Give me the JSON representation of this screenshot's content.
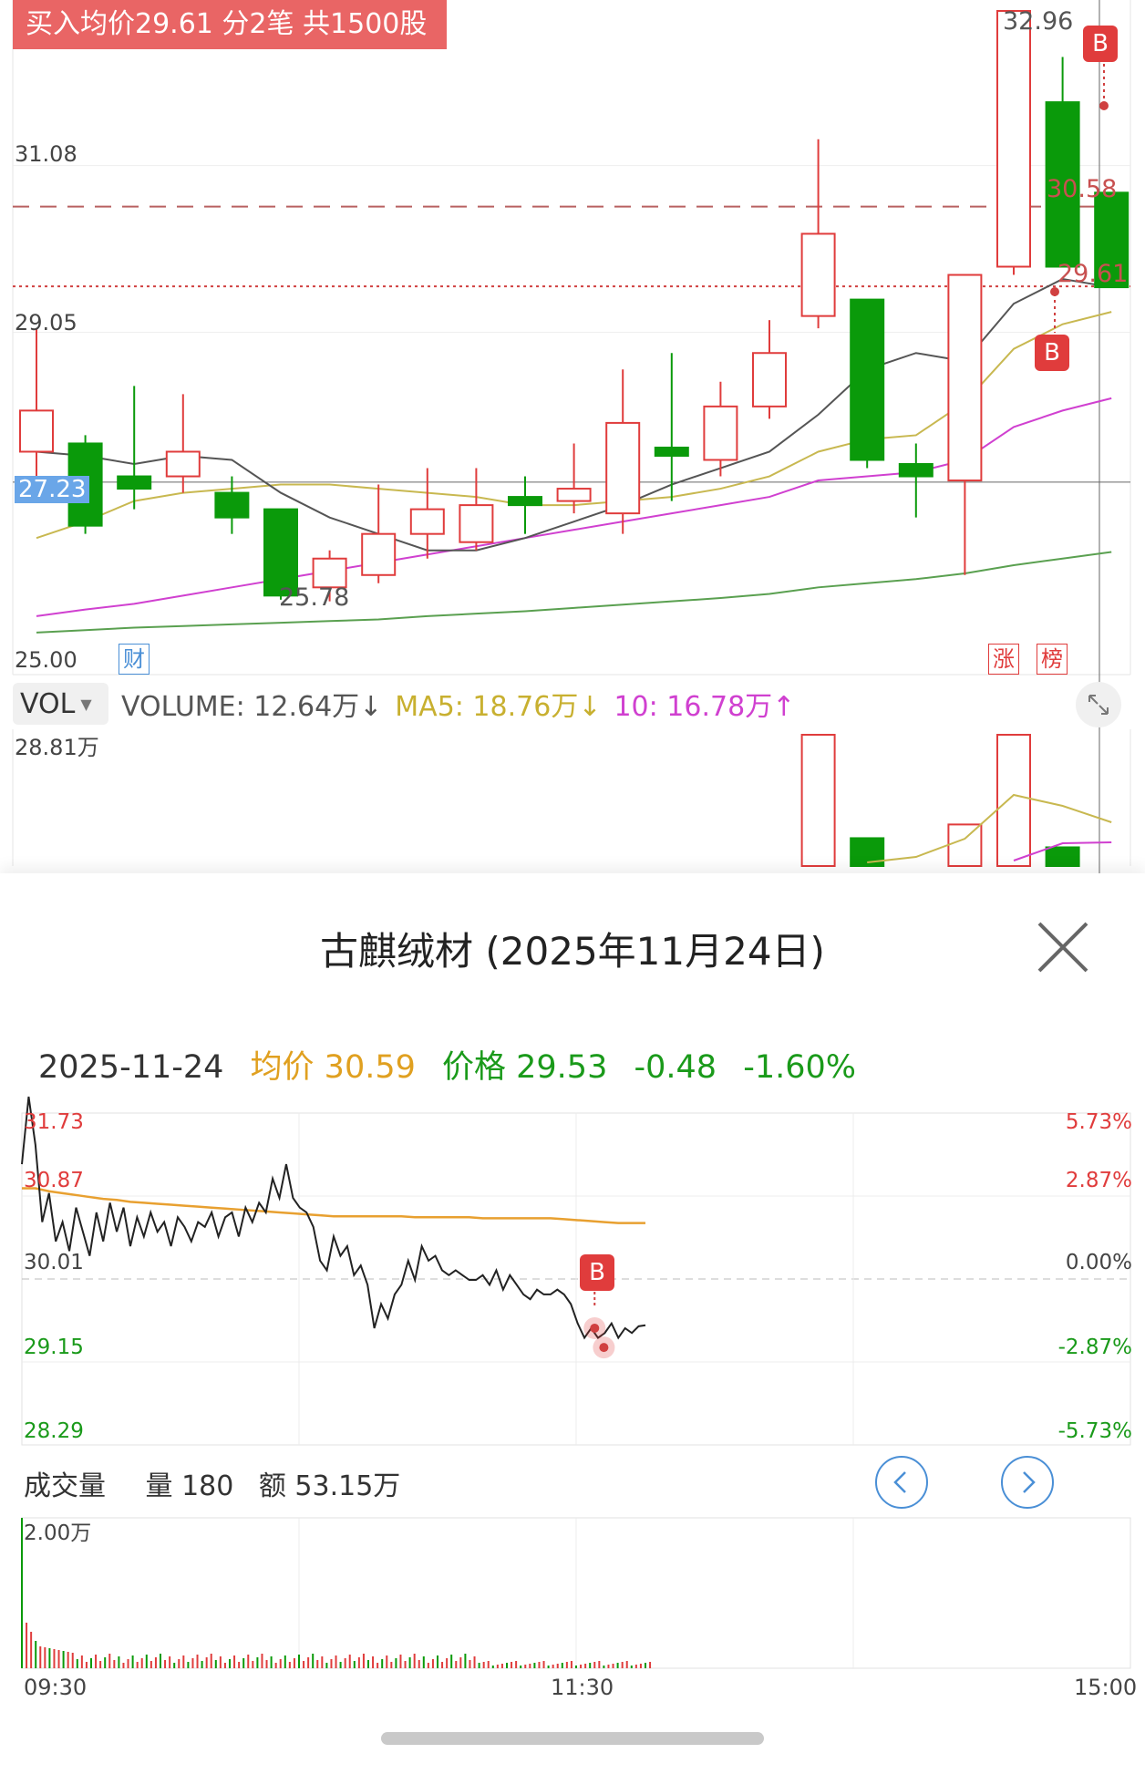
{
  "colors": {
    "up": "#e03c3c",
    "down": "#0a9a0a",
    "ma5": "#555555",
    "ma10": "#c8b850",
    "ma20": "#d040d0",
    "ma60": "#5aa050",
    "avg": "#e8a030",
    "accent": "#4a8fd6"
  },
  "kline": {
    "buy_banner": "买入均价29.61 分2笔 共1500股",
    "y_labels": [
      "31.08",
      "29.05",
      "25.00"
    ],
    "current_price_tag": "27.23",
    "high_label": "32.96",
    "low_label": "25.78",
    "avg_cost_label": "30.58",
    "buy_price_label": "29.61",
    "buy_marker": "B",
    "finance_tag": "财",
    "tags": [
      "涨",
      "榜"
    ],
    "ylim": [
      25.0,
      32.96
    ],
    "candles": [
      {
        "o": 27.6,
        "c": 28.1,
        "h": 29.1,
        "l": 27.2
      },
      {
        "o": 27.7,
        "c": 26.7,
        "h": 27.8,
        "l": 26.6
      },
      {
        "o": 27.3,
        "c": 27.15,
        "h": 28.4,
        "l": 26.9
      },
      {
        "o": 27.3,
        "c": 27.6,
        "h": 28.3,
        "l": 27.1
      },
      {
        "o": 27.1,
        "c": 26.8,
        "h": 27.3,
        "l": 26.6
      },
      {
        "o": 26.9,
        "c": 25.85,
        "h": 26.9,
        "l": 25.8
      },
      {
        "o": 25.95,
        "c": 26.3,
        "h": 26.4,
        "l": 25.78
      },
      {
        "o": 26.1,
        "c": 26.6,
        "h": 27.2,
        "l": 26.0
      },
      {
        "o": 26.6,
        "c": 26.9,
        "h": 27.4,
        "l": 26.3
      },
      {
        "o": 26.5,
        "c": 26.95,
        "h": 27.4,
        "l": 26.4
      },
      {
        "o": 27.05,
        "c": 26.95,
        "h": 27.3,
        "l": 26.6
      },
      {
        "o": 27.0,
        "c": 27.15,
        "h": 27.7,
        "l": 26.85
      },
      {
        "o": 26.85,
        "c": 27.95,
        "h": 28.6,
        "l": 26.6
      },
      {
        "o": 27.65,
        "c": 27.55,
        "h": 28.8,
        "l": 27.0
      },
      {
        "o": 27.5,
        "c": 28.15,
        "h": 28.45,
        "l": 27.3
      },
      {
        "o": 28.15,
        "c": 28.8,
        "h": 29.2,
        "l": 28.0
      },
      {
        "o": 29.25,
        "c": 30.25,
        "h": 31.4,
        "l": 29.1
      },
      {
        "o": 29.45,
        "c": 27.5,
        "h": 29.45,
        "l": 27.4
      },
      {
        "o": 27.45,
        "c": 27.3,
        "h": 27.7,
        "l": 26.8
      },
      {
        "o": 27.25,
        "c": 29.75,
        "h": 29.75,
        "l": 26.1
      },
      {
        "o": 29.85,
        "c": 32.96,
        "h": 32.96,
        "l": 29.75
      },
      {
        "o": 31.85,
        "c": 29.85,
        "h": 32.4,
        "l": 29.85
      },
      {
        "o": 30.75,
        "c": 29.6,
        "h": 30.75,
        "l": 29.6
      }
    ],
    "ma5": [
      27.6,
      27.55,
      27.45,
      27.55,
      27.5,
      27.1,
      26.8,
      26.6,
      26.4,
      26.4,
      26.55,
      26.75,
      26.95,
      27.2,
      27.4,
      27.6,
      28.05,
      28.6,
      28.8,
      28.7,
      29.4,
      29.7,
      29.6
    ],
    "ma10": [
      26.55,
      26.75,
      27.0,
      27.1,
      27.15,
      27.2,
      27.2,
      27.15,
      27.1,
      27.05,
      26.95,
      26.95,
      27.0,
      27.05,
      27.15,
      27.3,
      27.6,
      27.75,
      27.8,
      28.2,
      28.85,
      29.15,
      29.3
    ],
    "ma20": [
      25.6,
      25.68,
      25.75,
      25.85,
      25.95,
      26.05,
      26.15,
      26.25,
      26.35,
      26.45,
      26.55,
      26.65,
      26.75,
      26.85,
      26.95,
      27.05,
      27.25,
      27.3,
      27.35,
      27.5,
      27.9,
      28.1,
      28.25
    ],
    "ma60": [
      25.4,
      25.43,
      25.46,
      25.48,
      25.5,
      25.52,
      25.54,
      25.56,
      25.6,
      25.63,
      25.66,
      25.7,
      25.74,
      25.78,
      25.82,
      25.87,
      25.95,
      26.0,
      26.05,
      26.12,
      26.22,
      26.3,
      26.38
    ]
  },
  "vol_bar": {
    "selector": "VOL",
    "volume": "VOLUME: 12.64万↓",
    "ma5": "MA5: 18.76万↓",
    "ma10": "10: 16.78万↑",
    "max_label": "28.81万",
    "visible_bars": [
      {
        "i": 16,
        "v": 28.81,
        "up": true
      },
      {
        "i": 17,
        "v": 17.5,
        "up": false
      },
      {
        "i": 19,
        "v": 19.0,
        "up": true
      },
      {
        "i": 20,
        "v": 28.81,
        "up": true
      },
      {
        "i": 21,
        "v": 16.5,
        "up": false
      }
    ]
  },
  "dialog": {
    "title": "古麒绒材 (2025年11月24日)",
    "date": "2025-11-24",
    "avg_label": "均价 30.59",
    "price_label": "价格 29.53",
    "change": "-0.48",
    "change_pct": "-1.60%",
    "y_left": [
      "31.73",
      "30.87",
      "30.01",
      "29.15",
      "28.29"
    ],
    "y_right": [
      "5.73%",
      "2.87%",
      "0.00%",
      "-2.87%",
      "-5.73%"
    ],
    "buy_marker": "B",
    "volume_title": "成交量",
    "volume_qty": "量 180",
    "volume_amount": "额 53.15万",
    "vol_max_label": "2.00万",
    "x_labels": [
      "09:30",
      "11:30",
      "15:00"
    ],
    "price_series": [
      31.2,
      31.9,
      31.4,
      30.6,
      30.9,
      30.4,
      30.6,
      30.3,
      30.75,
      30.5,
      30.25,
      30.7,
      30.4,
      30.8,
      30.5,
      30.75,
      30.35,
      30.65,
      30.45,
      30.7,
      30.5,
      30.6,
      30.35,
      30.65,
      30.55,
      30.4,
      30.6,
      30.55,
      30.7,
      30.45,
      30.65,
      30.7,
      30.45,
      30.75,
      30.6,
      30.8,
      30.7,
      31.05,
      30.85,
      31.2,
      30.85,
      30.75,
      30.7,
      30.55,
      30.2,
      30.1,
      30.45,
      30.25,
      30.35,
      30.05,
      30.15,
      29.95,
      29.5,
      29.75,
      29.6,
      29.85,
      29.95,
      30.2,
      30.0,
      30.35,
      30.2,
      30.25,
      30.1,
      30.05,
      30.1,
      30.05,
      30.0,
      30.0,
      30.05,
      29.95,
      30.1,
      29.9,
      30.05,
      29.95,
      29.85,
      29.8,
      29.9,
      29.85,
      29.85,
      29.9,
      29.85,
      29.75,
      29.55,
      29.4,
      29.5,
      29.4,
      29.45,
      29.55,
      29.4,
      29.5,
      29.45,
      29.52,
      29.53
    ],
    "avg_series": [
      30.95,
      30.95,
      30.92,
      30.9,
      30.88,
      30.86,
      30.84,
      30.83,
      30.81,
      30.8,
      30.79,
      30.78,
      30.77,
      30.76,
      30.75,
      30.74,
      30.73,
      30.72,
      30.71,
      30.7,
      30.69,
      30.68,
      30.67,
      30.66,
      30.66,
      30.66,
      30.66,
      30.66,
      30.66,
      30.65,
      30.65,
      30.65,
      30.65,
      30.65,
      30.64,
      30.64,
      30.64,
      30.64,
      30.64,
      30.64,
      30.63,
      30.62,
      30.61,
      30.6,
      30.59,
      30.59,
      30.59
    ]
  }
}
